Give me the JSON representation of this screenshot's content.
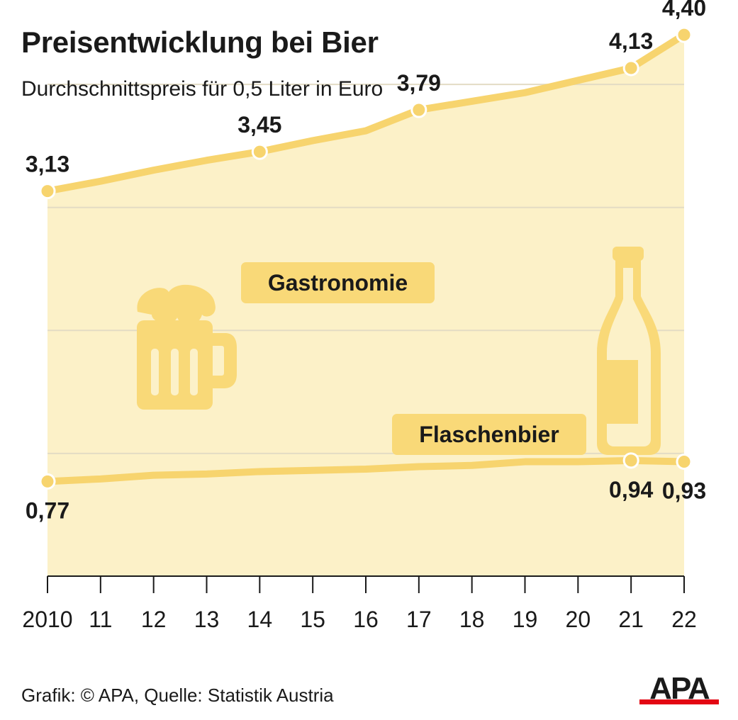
{
  "title": "Preisentwicklung bei Bier",
  "subtitle": "Durchschnittspreis für 0,5 Liter in Euro",
  "source": "Grafik: © APA, Quelle: Statistik Austria",
  "logo_text": "APA",
  "colors": {
    "line": "#f7d46e",
    "area": "#fcf1c8",
    "label_box": "#f9d978",
    "icon": "#f9d978",
    "grid": "#e3dcc4",
    "axis": "#1a1a1a",
    "logo_red": "#e30613"
  },
  "icons": [
    "beer-mug-icon",
    "beer-bottle-icon"
  ],
  "chart_data": {
    "type": "line",
    "title": "Preisentwicklung bei Bier",
    "subtitle": "Durchschnittspreis für 0,5 Liter in Euro",
    "x": [
      2010,
      2011,
      2012,
      2013,
      2014,
      2015,
      2016,
      2017,
      2018,
      2019,
      2020,
      2021,
      2022
    ],
    "x_tick_labels": [
      "2010",
      "11",
      "12",
      "13",
      "14",
      "15",
      "16",
      "17",
      "18",
      "19",
      "20",
      "21",
      "22"
    ],
    "ylim": [
      0,
      4.6
    ],
    "grid": true,
    "series": [
      {
        "name": "Gastronomie",
        "values": [
          3.13,
          3.21,
          3.3,
          3.38,
          3.45,
          3.54,
          3.62,
          3.79,
          3.86,
          3.93,
          4.03,
          4.13,
          4.4
        ],
        "labeled": [
          {
            "x": 2010,
            "label": "3,13"
          },
          {
            "x": 2014,
            "label": "3,45"
          },
          {
            "x": 2017,
            "label": "3,79"
          },
          {
            "x": 2021,
            "label": "4,13"
          },
          {
            "x": 2022,
            "label": "4,40"
          }
        ]
      },
      {
        "name": "Flaschenbier",
        "values": [
          0.77,
          0.79,
          0.82,
          0.83,
          0.85,
          0.86,
          0.87,
          0.89,
          0.9,
          0.93,
          0.93,
          0.94,
          0.93
        ],
        "labeled": [
          {
            "x": 2010,
            "label": "0,77"
          },
          {
            "x": 2021,
            "label": "0,94"
          },
          {
            "x": 2022,
            "label": "0,93"
          }
        ]
      }
    ]
  }
}
